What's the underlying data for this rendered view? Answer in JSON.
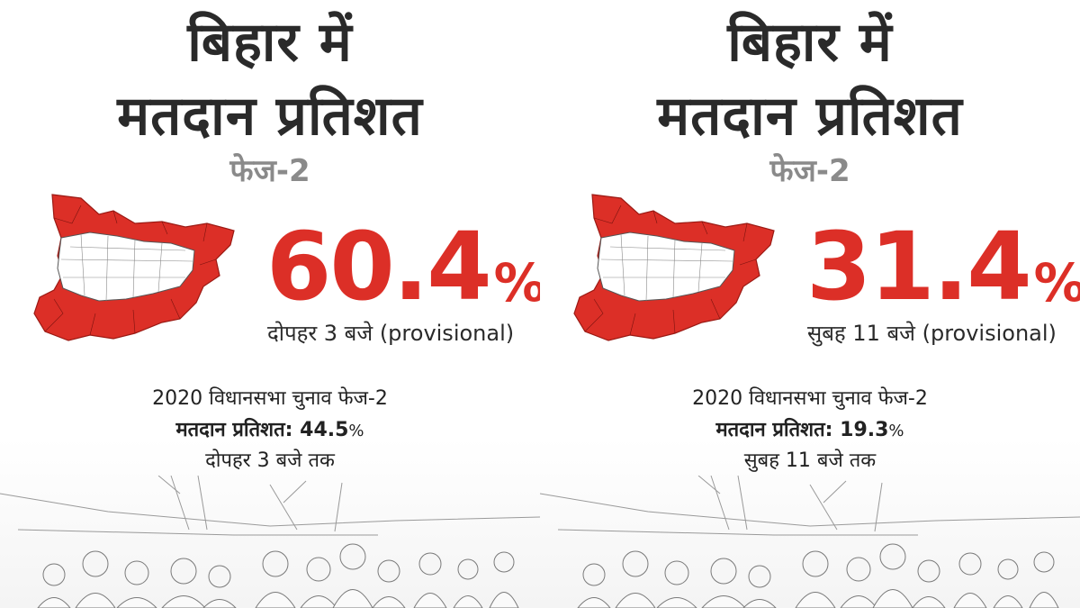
{
  "panels": [
    {
      "title_line1": "बिहार में",
      "title_line2": "मतदान प्रतिशत",
      "phase": "फेज-2",
      "turnout_value": "60.4",
      "turnout_symbol": "%",
      "turnout_time": "दोपहर 3 बजे (provisional)",
      "prev_heading": "2020 विधानसभा चुनाव फेज-2",
      "prev_label": "मतदान प्रतिशत:",
      "prev_value": "44.5",
      "prev_symbol": "%",
      "prev_time": "दोपहर 3 बजे तक"
    },
    {
      "title_line1": "बिहार में",
      "title_line2": "मतदान प्रतिशत",
      "phase": "फेज-2",
      "turnout_value": "31.4",
      "turnout_symbol": "%",
      "turnout_time": "सुबह 11 बजे (provisional)",
      "prev_heading": "2020 विधानसभा चुनाव फेज-2",
      "prev_label": "मतदान प्रतिशत:",
      "prev_value": "19.3",
      "prev_symbol": "%",
      "prev_time": "सुबह 11 बजे तक"
    }
  ],
  "colors": {
    "accent_red": "#dc2f27",
    "title_dark": "#2a2a2a",
    "phase_gray": "#8a8a8a"
  },
  "icons": [
    "bihar-map-icon",
    "crowd-illustration"
  ]
}
